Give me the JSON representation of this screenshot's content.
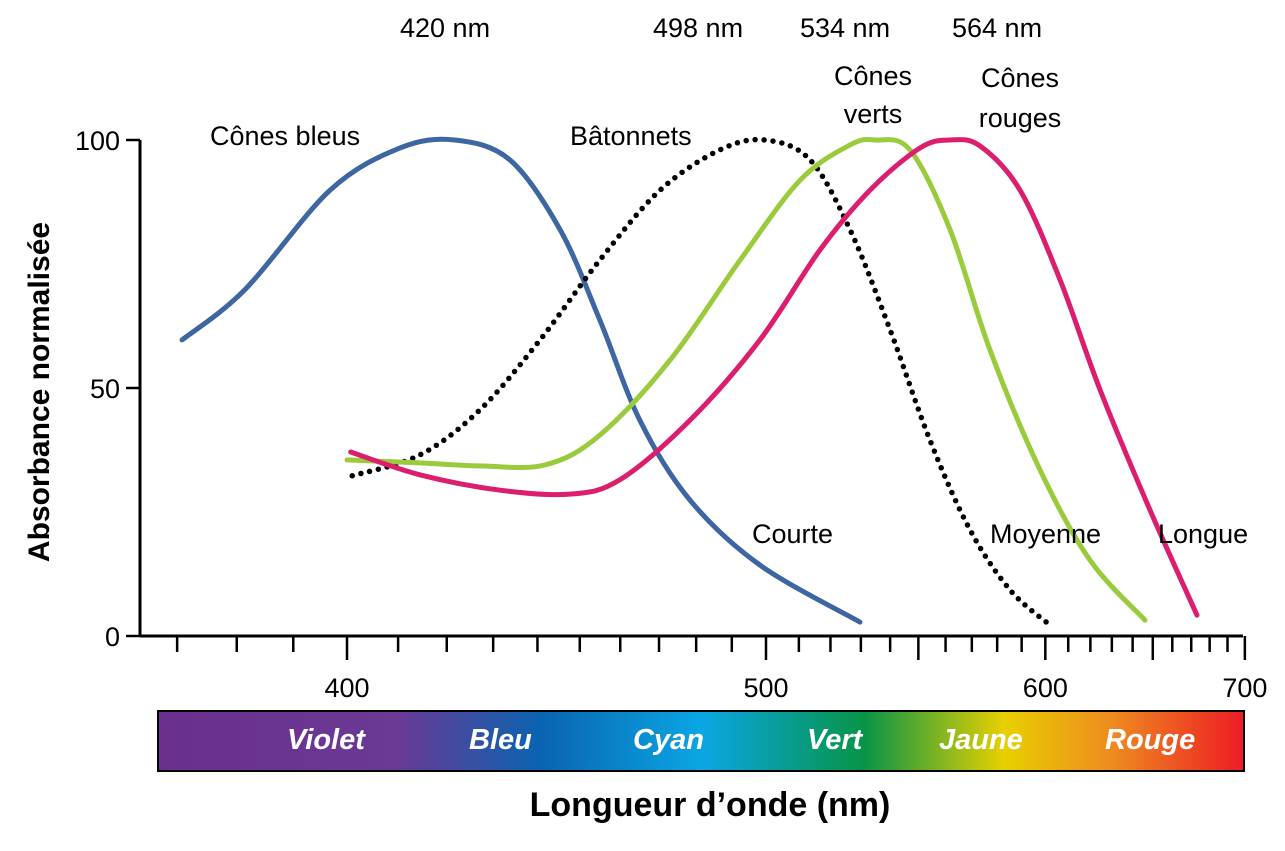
{
  "chart_data": {
    "type": "line",
    "title": "",
    "xlabel": "Longueur d’onde (nm)",
    "ylabel": "Absorbance normalisée",
    "xscale": "reciprocal",
    "xlim": [
      370,
      700
    ],
    "ylim": [
      0,
      100
    ],
    "xticks": [
      400,
      500,
      600,
      700
    ],
    "yticks": [
      0,
      50,
      100
    ],
    "xtick_labels": [
      "400",
      "500",
      "600",
      "700"
    ],
    "ytick_labels": [
      "0",
      "50",
      "100"
    ],
    "series": [
      {
        "name": "Cônes bleus",
        "short": "Courte",
        "peak_label": "420 nm",
        "color": "#3d66a3",
        "style": "solid",
        "x": [
          370.8,
          381.4,
          396.8,
          410.4,
          421.7,
          433.7,
          445.3,
          454.9,
          465.0,
          478.3,
          498.2,
          529.7
        ],
        "y": [
          59.7,
          69.8,
          89.9,
          98.4,
          100,
          96,
          81.9,
          63.7,
          43.5,
          27.4,
          14.3,
          2.8
        ]
      },
      {
        "name": "Bâtonnets",
        "short": "",
        "peak_label": "498 nm",
        "color": "#000000",
        "style": "dotted",
        "x": [
          401,
          414.4,
          427.1,
          440.6,
          454.9,
          470.3,
          486.6,
          499.7,
          513.5,
          526.4,
          540,
          554.2,
          569.3,
          585.2,
          602
        ],
        "y": [
          32.3,
          36.5,
          45.6,
          59.7,
          75.8,
          89.9,
          98,
          100,
          96,
          81.9,
          61.7,
          39.5,
          21.4,
          9.3,
          2.2
        ]
      },
      {
        "name": "Cônes verts",
        "short": "Moyenne",
        "peak_label": "534 nm",
        "color": "#9acb3c",
        "style": "solid",
        "x": [
          400,
          414.4,
          427.1,
          441.8,
          454.9,
          472.9,
          492.4,
          510.4,
          526.4,
          534.8,
          547,
          561.7,
          577.1,
          597.7,
          619.8,
          646.1
        ],
        "y": [
          35.5,
          34.9,
          34.3,
          34.5,
          40.5,
          55.6,
          75.8,
          91.9,
          99,
          100,
          98,
          81.9,
          57.7,
          33.5,
          15.3,
          3.2
        ]
      },
      {
        "name": "Cônes rouges",
        "short": "Longue",
        "peak_label": "564 nm",
        "color": "#dc1e6e",
        "style": "solid",
        "x": [
          400.7,
          414.4,
          431.5,
          447.6,
          459.9,
          478.3,
          498.2,
          516.6,
          533.1,
          550.6,
          561.7,
          573.2,
          589.3,
          606.4,
          624.5,
          648.6,
          673.1
        ],
        "y": [
          37.1,
          32.5,
          29.4,
          28.6,
          31.5,
          43.5,
          59.7,
          77.8,
          89.9,
          98.4,
          100,
          98.8,
          89.9,
          71.8,
          49.6,
          25.4,
          4.2
        ]
      }
    ],
    "labels": {
      "blue": "Cônes bleus",
      "rods": "Bâtonnets",
      "green1": "Cônes",
      "green2": "verts",
      "red1": "Cônes",
      "red2": "rouges"
    },
    "spectrum": [
      "Violet",
      "Bleu",
      "Cyan",
      "Vert",
      "Jaune",
      "Rouge"
    ]
  }
}
